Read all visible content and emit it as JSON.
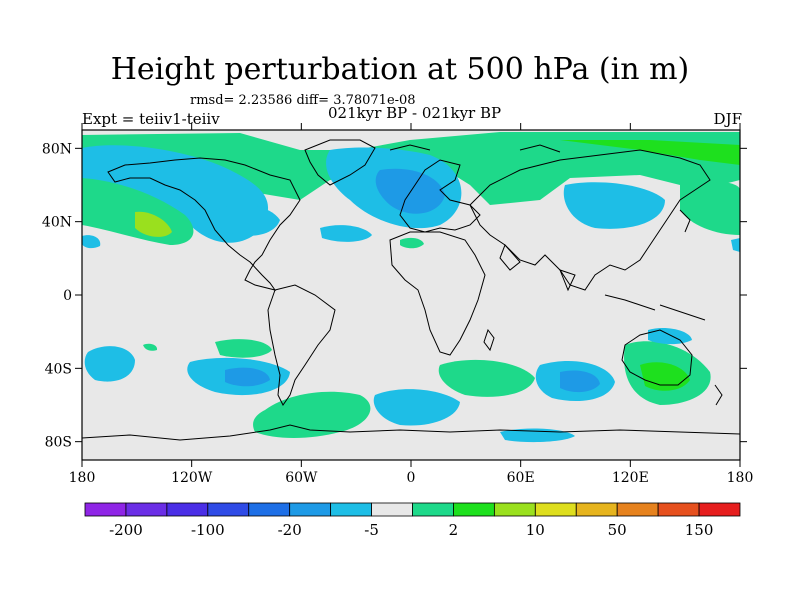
{
  "header": {
    "title": "Height perturbation at 500 hPa (in m)",
    "rmsd_text": "rmsd= 2.23586 diff= 3.78071e-08",
    "experiment": "Expt = teiiv1-teiiv",
    "period": "021kyr BP - 021kyr BP",
    "season": "DJF"
  },
  "axes": {
    "lat_ticks": [
      {
        "label": "80N",
        "value": 80
      },
      {
        "label": "40N",
        "value": 40
      },
      {
        "label": "0",
        "value": 0
      },
      {
        "label": "40S",
        "value": -40
      },
      {
        "label": "80S",
        "value": -80
      }
    ],
    "lon_ticks": [
      {
        "label": "180",
        "value": -180
      },
      {
        "label": "120W",
        "value": -120
      },
      {
        "label": "60W",
        "value": -60
      },
      {
        "label": "0",
        "value": 0
      },
      {
        "label": "60E",
        "value": 60
      },
      {
        "label": "120E",
        "value": 120
      },
      {
        "label": "180",
        "value": 180
      }
    ]
  },
  "colorbar": {
    "colors": [
      "#8f25e6",
      "#6b2ee6",
      "#4a2ee6",
      "#2f4be6",
      "#1e6fe6",
      "#1e9ae6",
      "#1ebee6",
      "#e8e8e8",
      "#1ed98a",
      "#1ee01e",
      "#9ae01e",
      "#dede1e",
      "#e6b41e",
      "#e6821e",
      "#e6501e",
      "#e61e1e"
    ],
    "labels": [
      {
        "text": "-200",
        "after_box": 1
      },
      {
        "text": "-100",
        "after_box": 3
      },
      {
        "text": "-20",
        "after_box": 5
      },
      {
        "text": "-5",
        "after_box": 7
      },
      {
        "text": "2",
        "after_box": 9
      },
      {
        "text": "10",
        "after_box": 11
      },
      {
        "text": "50",
        "after_box": 13
      },
      {
        "text": "150",
        "after_box": 15
      }
    ]
  },
  "field_colors": {
    "neutral": "#e8e8e8",
    "light_blue": "#1ebee6",
    "mid_blue": "#1e9ae6",
    "light_green": "#1ed98a",
    "green": "#1ee01e",
    "yellow_green": "#9ae01e"
  }
}
